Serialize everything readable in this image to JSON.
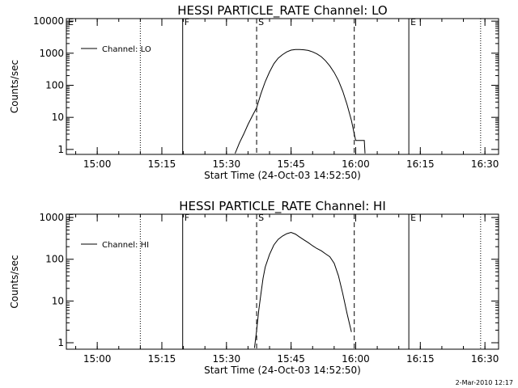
{
  "chart_data": [
    {
      "type": "line",
      "title": "HESSI PARTICLE_RATE Channel: LO",
      "xlabel": "Start Time (24-Oct-03 14:52:50)",
      "ylabel": "Counts/sec",
      "y_scale": "log",
      "ylim": [
        0.7,
        12000
      ],
      "xlim": [
        "14:52:50",
        "16:33:10"
      ],
      "x_ticks": [
        "15:00",
        "15:15",
        "15:30",
        "15:45",
        "16:00",
        "16:15",
        "16:30"
      ],
      "y_ticks": [
        "1",
        "10",
        "100",
        "1000",
        "10000"
      ],
      "legend": {
        "position": "top-left",
        "entries": [
          "Channel: LO"
        ]
      },
      "markers": [
        {
          "label": "E",
          "time": "14:52:50",
          "style": "dotted"
        },
        {
          "label": "",
          "time": "15:10:00",
          "style": "dotted"
        },
        {
          "label": "F",
          "time": "15:19:50",
          "style": "solid"
        },
        {
          "label": "S",
          "time": "15:37:00",
          "style": "dashed"
        },
        {
          "label": "",
          "time": "15:59:40",
          "style": "dashed"
        },
        {
          "label": "E",
          "time": "16:12:20",
          "style": "solid"
        },
        {
          "label": "",
          "time": "16:29:00",
          "style": "dotted"
        }
      ],
      "series": [
        {
          "name": "Channel: LO",
          "x": [
            "15:32:00",
            "15:33:00",
            "15:34:00",
            "15:35:00",
            "15:36:00",
            "15:37:00",
            "15:38:00",
            "15:39:00",
            "15:40:00",
            "15:41:00",
            "15:42:00",
            "15:43:00",
            "15:44:00",
            "15:45:00",
            "15:46:00",
            "15:47:00",
            "15:48:00",
            "15:49:00",
            "15:50:00",
            "15:51:00",
            "15:52:00",
            "15:53:00",
            "15:54:00",
            "15:55:00",
            "15:56:00",
            "15:57:00",
            "15:58:00",
            "15:59:00",
            "15:59:40",
            "16:00:00",
            "16:00:20",
            "16:00:40",
            "16:02:00",
            "16:02:10"
          ],
          "values": [
            0.75,
            1.6,
            3.0,
            6.0,
            11,
            20,
            55,
            130,
            260,
            470,
            700,
            900,
            1100,
            1250,
            1300,
            1300,
            1280,
            1220,
            1100,
            950,
            780,
            580,
            400,
            250,
            140,
            65,
            25,
            8,
            3,
            1.9,
            1.9,
            1.9,
            1.9,
            0.75
          ]
        }
      ]
    },
    {
      "type": "line",
      "title": "HESSI PARTICLE_RATE Channel: HI",
      "xlabel": "Start Time (24-Oct-03 14:52:50)",
      "ylabel": "Counts/sec",
      "y_scale": "log",
      "ylim": [
        0.7,
        1200
      ],
      "xlim": [
        "14:52:50",
        "16:33:10"
      ],
      "x_ticks": [
        "15:00",
        "15:15",
        "15:30",
        "15:45",
        "16:00",
        "16:15",
        "16:30"
      ],
      "y_ticks": [
        "1",
        "10",
        "100",
        "1000"
      ],
      "legend": {
        "position": "top-left",
        "entries": [
          "Channel: HI"
        ]
      },
      "markers": [
        {
          "label": "E",
          "time": "14:52:50",
          "style": "dotted"
        },
        {
          "label": "",
          "time": "15:10:00",
          "style": "dotted"
        },
        {
          "label": "F",
          "time": "15:19:50",
          "style": "solid"
        },
        {
          "label": "S",
          "time": "15:37:00",
          "style": "dashed"
        },
        {
          "label": "",
          "time": "15:59:40",
          "style": "dashed"
        },
        {
          "label": "E",
          "time": "16:12:20",
          "style": "solid"
        },
        {
          "label": "",
          "time": "16:29:00",
          "style": "dotted"
        }
      ],
      "series": [
        {
          "name": "Channel: HI",
          "x": [
            "15:36:30",
            "15:37:00",
            "15:37:30",
            "15:38:00",
            "15:38:30",
            "15:39:00",
            "15:40:00",
            "15:41:00",
            "15:42:00",
            "15:43:00",
            "15:44:00",
            "15:45:00",
            "15:46:00",
            "15:47:00",
            "15:48:00",
            "15:49:00",
            "15:50:00",
            "15:51:00",
            "15:52:00",
            "15:53:00",
            "15:54:00",
            "15:55:00",
            "15:56:00",
            "15:57:00",
            "15:58:00",
            "15:59:00"
          ],
          "values": [
            0.75,
            2,
            6,
            15,
            35,
            65,
            130,
            220,
            300,
            360,
            410,
            440,
            400,
            340,
            290,
            250,
            210,
            180,
            160,
            135,
            115,
            80,
            40,
            15,
            5,
            1.8
          ]
        }
      ]
    }
  ],
  "footer": "2-Mar-2010 12:17"
}
